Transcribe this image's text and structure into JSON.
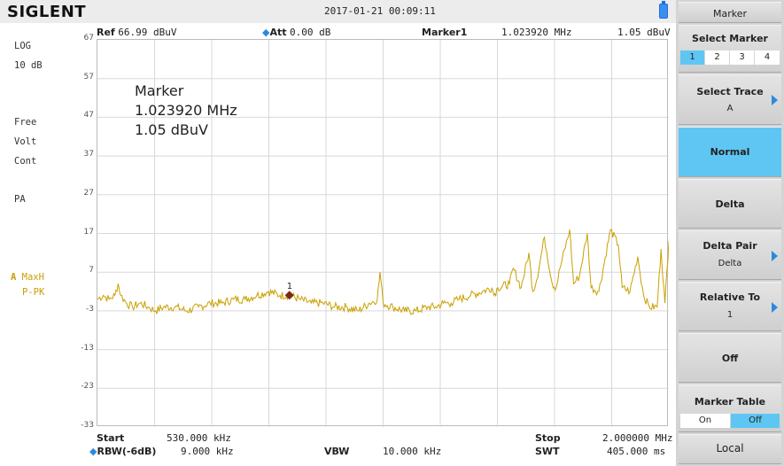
{
  "brand": "SIGLENT",
  "datetime": "2017-01-21  00:09:11",
  "header": {
    "ref_label": "Ref",
    "ref_value": "66.99 dBuV",
    "att_label": "Att",
    "att_value": "0.00 dB",
    "marker_label": "Marker1",
    "marker_freq": "1.023920 MHz",
    "marker_level": "1.05 dBuV"
  },
  "left_panel": {
    "scale_type": "LOG",
    "scale_div": "10 dB",
    "free": "Free",
    "volt": "Volt",
    "cont": "Cont",
    "pa": "PA",
    "trace_letter": "A",
    "trace_mode": "MaxH",
    "detector": "P-PK"
  },
  "y_ticks": [
    "67",
    "57",
    "47",
    "37",
    "27",
    "17",
    "7",
    "-3",
    "-13",
    "-23",
    "-33"
  ],
  "marker_box": {
    "title": "Marker",
    "freq": "1.023920 MHz",
    "level": "1.05 dBuV",
    "number": "1"
  },
  "bottom": {
    "start_label": "Start",
    "start_value": "530.000 kHz",
    "stop_label": "Stop",
    "stop_value": "2.000000 MHz",
    "rbw_label": "RBW(-6dB)",
    "rbw_value": "9.000 kHz",
    "vbw_label": "VBW",
    "vbw_value": "10.000 kHz",
    "swt_label": "SWT",
    "swt_value": "405.000 ms"
  },
  "menu": {
    "title": "Marker",
    "select_marker": "Select Marker",
    "marker_options": [
      "1",
      "2",
      "3",
      "4"
    ],
    "selected_marker": "1",
    "select_trace": "Select Trace",
    "select_trace_value": "A",
    "normal": "Normal",
    "delta": "Delta",
    "delta_pair": "Delta Pair",
    "delta_pair_value": "Delta",
    "relative_to": "Relative To",
    "relative_to_value": "1",
    "off": "Off",
    "marker_table": "Marker Table",
    "marker_table_on": "On",
    "marker_table_off": "Off",
    "local": "Local"
  },
  "colors": {
    "trace": "#c9a000",
    "active_key": "#5fc6f3",
    "marker": "#7a2a10",
    "grid": "#d8d8d8"
  },
  "chart_data": {
    "type": "line",
    "x_start_mhz": 0.53,
    "x_stop_mhz": 2.0,
    "ylim": [
      -33,
      67
    ],
    "y_unit": "dBuV",
    "series": [
      {
        "x": [
          0.53,
          0.545,
          0.56,
          0.575,
          0.583,
          0.59,
          0.605,
          0.62,
          0.64,
          0.66,
          0.68,
          0.7,
          0.73,
          0.76,
          0.79,
          0.82,
          0.85,
          0.88,
          0.91,
          0.94,
          0.97,
          1.0,
          1.024,
          1.05,
          1.08,
          1.11,
          1.14,
          1.17,
          1.2,
          1.23,
          1.25,
          1.257,
          1.265,
          1.29,
          1.32,
          1.35,
          1.38,
          1.4,
          1.42,
          1.44,
          1.46,
          1.49,
          1.52,
          1.545,
          1.55,
          1.56,
          1.59,
          1.6,
          1.62,
          1.64,
          1.65,
          1.66,
          1.68,
          1.7,
          1.71,
          1.72,
          1.745,
          1.755,
          1.77,
          1.79,
          1.8,
          1.82,
          1.85,
          1.87,
          1.88,
          1.9,
          1.92,
          1.935,
          1.95,
          1.97,
          1.98,
          1.99,
          2.0
        ],
        "y": [
          0,
          1,
          0,
          1,
          4,
          1,
          -1,
          -2,
          -1,
          -2,
          -3,
          -2,
          -2,
          -3,
          -2,
          -1,
          -1,
          0,
          0,
          1,
          2,
          1,
          1.05,
          0,
          -1,
          -1,
          -2,
          -2,
          -3,
          -1,
          0,
          7,
          -1,
          -2,
          -3,
          -3,
          -2,
          -2,
          -1,
          -1,
          0,
          1,
          2,
          3,
          1,
          3,
          4,
          8,
          3,
          12,
          2,
          5,
          16,
          4,
          3,
          8,
          18,
          4,
          6,
          17,
          3,
          2,
          18,
          14,
          3,
          2,
          11,
          1,
          -2,
          -2,
          13,
          -1,
          15
        ]
      }
    ]
  }
}
